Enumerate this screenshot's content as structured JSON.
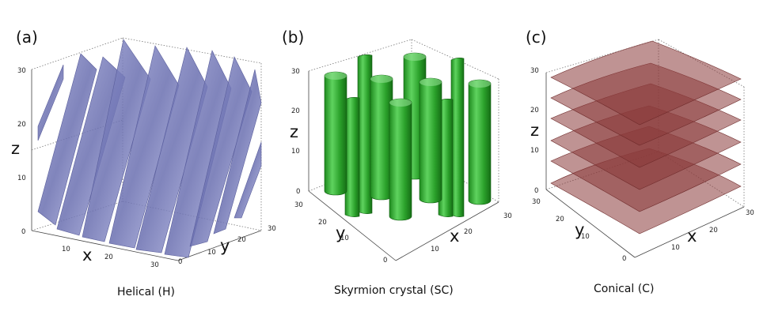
{
  "panels": [
    {
      "letter": "(a)",
      "caption": "Helical (H)",
      "axes": {
        "x": "x",
        "y": "y",
        "z": "z"
      },
      "z_ticks": [
        "0",
        "10",
        "20",
        "30"
      ],
      "x_ticks": [
        "10",
        "20",
        "30"
      ],
      "y_ticks": [
        "0",
        "10",
        "20",
        "30"
      ],
      "surface_color": "#8a8fc6"
    },
    {
      "letter": "(b)",
      "caption": "Skyrmion crystal (SC)",
      "axes": {
        "x": "x",
        "y": "y",
        "z": "z"
      },
      "z_ticks": [
        "0",
        "10",
        "20",
        "30"
      ],
      "x_ticks": [
        "10",
        "20",
        "30"
      ],
      "y_ticks": [
        "0",
        "10",
        "20",
        "30"
      ],
      "surface_color": "#35b035"
    },
    {
      "letter": "(c)",
      "caption": "Conical (C)",
      "axes": {
        "x": "x",
        "y": "y",
        "z": "z"
      },
      "z_ticks": [
        "0",
        "10",
        "20",
        "30"
      ],
      "x_ticks": [
        "10",
        "20",
        "30"
      ],
      "y_ticks": [
        "0",
        "10",
        "20",
        "30"
      ],
      "surface_color": "#8b3a3a"
    }
  ]
}
